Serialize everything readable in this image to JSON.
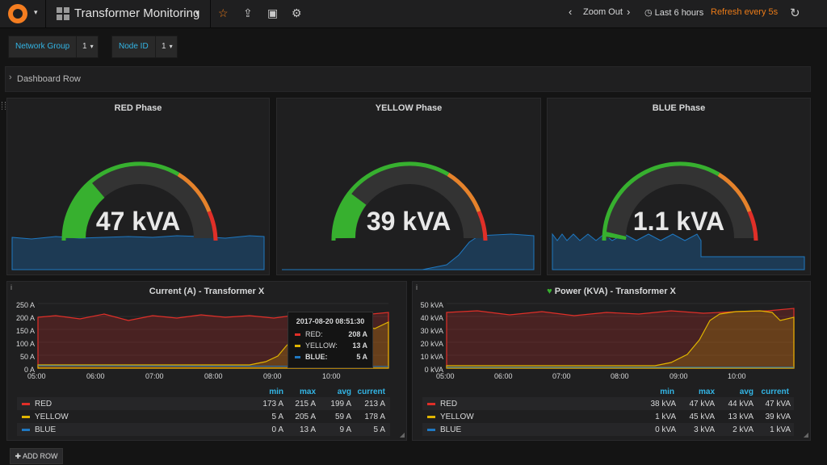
{
  "nav": {
    "dashboard_title": "Transformer Monitoring",
    "zoom_out": "Zoom Out",
    "time_range": "Last 6 hours",
    "refresh": "Refresh every 5s",
    "icons": [
      "grafana-logo-icon",
      "dashboards-icon",
      "star-icon",
      "share-icon",
      "save-icon",
      "gear-icon",
      "chevron-left-icon",
      "chevron-right-icon",
      "clock-icon",
      "refresh-icon"
    ]
  },
  "template_vars": [
    {
      "label": "Network Group",
      "value": "1"
    },
    {
      "label": "Node ID",
      "value": "1"
    }
  ],
  "row": {
    "title": "Dashboard Row"
  },
  "gauges": [
    {
      "title": "RED Phase",
      "value_text": "47 kVA",
      "value": 47
    },
    {
      "title": "YELLOW Phase",
      "value_text": "39 kVA",
      "value": 39
    },
    {
      "title": "BLUE Phase",
      "value_text": "1.1 kVA",
      "value": 1.1
    }
  ],
  "colors": {
    "red": "#e02f28",
    "yellow": "#e0b400",
    "blue": "#1f78c1",
    "green": "#37b02f",
    "orange": "#e5822b",
    "accent": "#33b5e5",
    "refresh": "#eb7b18"
  },
  "current_panel": {
    "title": "Current (A) - Transformer X",
    "y_ticks": [
      "250 A",
      "200 A",
      "150 A",
      "100 A",
      "50 A",
      "0 A"
    ],
    "x_ticks": [
      "05:00",
      "06:00",
      "07:00",
      "08:00",
      "09:00",
      "10:00"
    ],
    "legend_cols": [
      "min",
      "max",
      "avg",
      "current"
    ],
    "legend": [
      {
        "name": "RED",
        "min": "173 A",
        "max": "215 A",
        "avg": "199 A",
        "current": "213 A"
      },
      {
        "name": "YELLOW",
        "min": "5 A",
        "max": "205 A",
        "avg": "59 A",
        "current": "178 A"
      },
      {
        "name": "BLUE",
        "min": "0 A",
        "max": "13 A",
        "avg": "9 A",
        "current": "5 A"
      }
    ],
    "tooltip": {
      "time": "2017-08-20 08:51:30",
      "red_label": "RED:",
      "red": "208 A",
      "yellow_label": "YELLOW:",
      "yellow": "13 A",
      "blue_label": "BLUE:",
      "blue": "5 A"
    }
  },
  "power_panel": {
    "title": "Power (KVA) - Transformer X",
    "y_ticks": [
      "50 kVA",
      "40 kVA",
      "30 kVA",
      "20 kVA",
      "10 kVA",
      "0 kVA"
    ],
    "x_ticks": [
      "05:00",
      "06:00",
      "07:00",
      "08:00",
      "09:00",
      "10:00"
    ],
    "legend_cols": [
      "min",
      "max",
      "avg",
      "current"
    ],
    "legend": [
      {
        "name": "RED",
        "min": "38 kVA",
        "max": "47 kVA",
        "avg": "44 kVA",
        "current": "47 kVA"
      },
      {
        "name": "YELLOW",
        "min": "1 kVA",
        "max": "45 kVA",
        "avg": "13 kVA",
        "current": "39 kVA"
      },
      {
        "name": "BLUE",
        "min": "0 kVA",
        "max": "3 kVA",
        "avg": "2 kVA",
        "current": "1 kVA"
      }
    ]
  },
  "add_row": "ADD ROW"
}
